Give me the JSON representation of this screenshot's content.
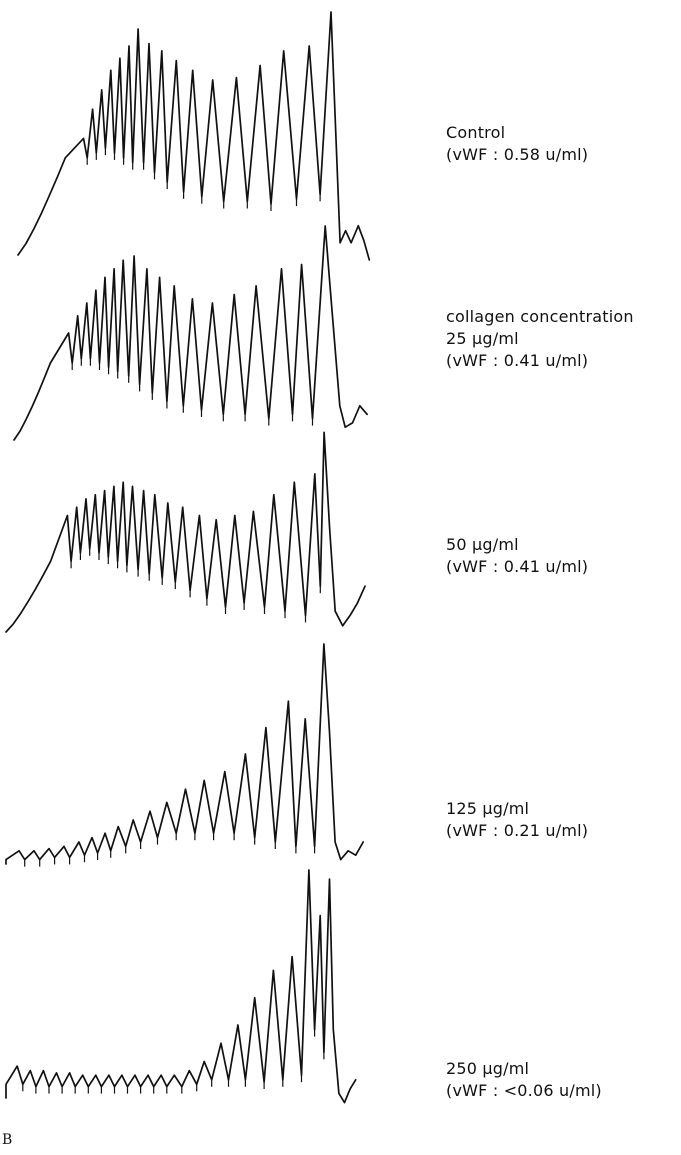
{
  "chart_data": {
    "type": "line",
    "description_free": true,
    "panel_letter": "B",
    "traces": [
      {
        "label_lines": [
          "Control",
          "(vWF : 0.58 u/ml)"
        ],
        "waveform": {
          "start": 0,
          "rise_end": 0.22,
          "osc_start": 0.13,
          "peaks": [
            [
              0.18,
              0.48
            ],
            [
              0.205,
              0.6
            ],
            [
              0.23,
              0.68
            ],
            [
              0.255,
              0.76
            ],
            [
              0.28,
              0.81
            ],
            [
              0.305,
              0.86
            ],
            [
              0.33,
              0.93
            ],
            [
              0.36,
              0.87
            ],
            [
              0.395,
              0.84
            ],
            [
              0.435,
              0.8
            ],
            [
              0.48,
              0.76
            ],
            [
              0.535,
              0.72
            ],
            [
              0.6,
              0.73
            ],
            [
              0.665,
              0.78
            ],
            [
              0.73,
              0.84
            ],
            [
              0.8,
              0.86
            ],
            [
              0.86,
              1.0
            ]
          ],
          "valleys": [
            [
              0.19,
              0.4
            ],
            [
              0.215,
              0.42
            ],
            [
              0.24,
              0.44
            ],
            [
              0.265,
              0.42
            ],
            [
              0.29,
              0.4
            ],
            [
              0.315,
              0.38
            ],
            [
              0.345,
              0.38
            ],
            [
              0.375,
              0.34
            ],
            [
              0.41,
              0.3
            ],
            [
              0.455,
              0.26
            ],
            [
              0.505,
              0.24
            ],
            [
              0.565,
              0.22
            ],
            [
              0.63,
              0.22
            ],
            [
              0.695,
              0.21
            ],
            [
              0.765,
              0.23
            ],
            [
              0.83,
              0.25
            ]
          ],
          "tail": [
            [
              0.885,
              0.05
            ],
            [
              0.9,
              0.1
            ],
            [
              0.915,
              0.05
            ],
            [
              0.935,
              0.12
            ],
            [
              0.95,
              0.06
            ],
            [
              0.965,
              -0.02
            ]
          ]
        }
      },
      {
        "label_lines": [
          "collagen concentration",
          "25 μg/ml",
          "(vWF : 0.41 u/ml)"
        ],
        "waveform": {
          "start": 0,
          "rise_end": 0.22,
          "osc_start": 0.1,
          "peaks": [
            [
              0.15,
              0.5
            ],
            [
              0.175,
              0.58
            ],
            [
              0.2,
              0.64
            ],
            [
              0.225,
              0.7
            ],
            [
              0.25,
              0.76
            ],
            [
              0.275,
              0.8
            ],
            [
              0.3,
              0.84
            ],
            [
              0.33,
              0.86
            ],
            [
              0.365,
              0.8
            ],
            [
              0.4,
              0.76
            ],
            [
              0.44,
              0.72
            ],
            [
              0.49,
              0.66
            ],
            [
              0.545,
              0.64
            ],
            [
              0.605,
              0.68
            ],
            [
              0.665,
              0.72
            ],
            [
              0.735,
              0.8
            ],
            [
              0.79,
              0.82
            ],
            [
              0.855,
              1.0
            ]
          ],
          "valleys": [
            [
              0.16,
              0.36
            ],
            [
              0.185,
              0.38
            ],
            [
              0.21,
              0.38
            ],
            [
              0.235,
              0.36
            ],
            [
              0.26,
              0.34
            ],
            [
              0.285,
              0.32
            ],
            [
              0.315,
              0.3
            ],
            [
              0.345,
              0.26
            ],
            [
              0.38,
              0.22
            ],
            [
              0.42,
              0.18
            ],
            [
              0.465,
              0.16
            ],
            [
              0.515,
              0.14
            ],
            [
              0.575,
              0.12
            ],
            [
              0.635,
              0.12
            ],
            [
              0.7,
              0.1
            ],
            [
              0.765,
              0.12
            ],
            [
              0.82,
              0.1
            ]
          ],
          "tail": [
            [
              0.87,
              0.68
            ],
            [
              0.895,
              0.16
            ],
            [
              0.91,
              0.06
            ],
            [
              0.93,
              0.08
            ],
            [
              0.95,
              0.16
            ],
            [
              0.97,
              0.12
            ]
          ]
        }
      },
      {
        "label_lines": [
          "50 μg/ml",
          "(vWF : 0.41 u/ml)"
        ],
        "waveform": {
          "start": 0,
          "rise_end": 0.2,
          "osc_start": 0.12,
          "peaks": [
            [
              0.165,
              0.56
            ],
            [
              0.19,
              0.6
            ],
            [
              0.215,
              0.64
            ],
            [
              0.24,
              0.66
            ],
            [
              0.265,
              0.68
            ],
            [
              0.29,
              0.7
            ],
            [
              0.315,
              0.72
            ],
            [
              0.34,
              0.7
            ],
            [
              0.37,
              0.68
            ],
            [
              0.4,
              0.66
            ],
            [
              0.435,
              0.62
            ],
            [
              0.475,
              0.6
            ],
            [
              0.52,
              0.56
            ],
            [
              0.565,
              0.54
            ],
            [
              0.615,
              0.56
            ],
            [
              0.665,
              0.58
            ],
            [
              0.72,
              0.66
            ],
            [
              0.775,
              0.72
            ],
            [
              0.83,
              0.76
            ],
            [
              0.855,
              0.96
            ]
          ],
          "valleys": [
            [
              0.175,
              0.34
            ],
            [
              0.2,
              0.38
            ],
            [
              0.225,
              0.4
            ],
            [
              0.25,
              0.38
            ],
            [
              0.275,
              0.36
            ],
            [
              0.3,
              0.34
            ],
            [
              0.325,
              0.32
            ],
            [
              0.355,
              0.3
            ],
            [
              0.385,
              0.28
            ],
            [
              0.42,
              0.26
            ],
            [
              0.455,
              0.24
            ],
            [
              0.495,
              0.2
            ],
            [
              0.54,
              0.16
            ],
            [
              0.59,
              0.12
            ],
            [
              0.64,
              0.14
            ],
            [
              0.695,
              0.12
            ],
            [
              0.75,
              0.1
            ],
            [
              0.805,
              0.08
            ],
            [
              0.845,
              0.22
            ]
          ],
          "tail": [
            [
              0.87,
              0.5
            ],
            [
              0.885,
              0.1
            ],
            [
              0.905,
              0.03
            ],
            [
              0.925,
              0.08
            ],
            [
              0.945,
              0.14
            ],
            [
              0.965,
              0.22
            ]
          ]
        }
      },
      {
        "label_lines": [
          "125 μg/ml",
          "(vWF : 0.21 u/ml)"
        ],
        "waveform": {
          "start": 0,
          "rise_end": 0.08,
          "osc_start": 0.0,
          "peaks": [
            [
              0.035,
              0.06
            ],
            [
              0.075,
              0.06
            ],
            [
              0.115,
              0.07
            ],
            [
              0.155,
              0.08
            ],
            [
              0.195,
              0.1
            ],
            [
              0.23,
              0.12
            ],
            [
              0.265,
              0.14
            ],
            [
              0.3,
              0.17
            ],
            [
              0.34,
              0.2
            ],
            [
              0.385,
              0.24
            ],
            [
              0.43,
              0.28
            ],
            [
              0.48,
              0.34
            ],
            [
              0.53,
              0.38
            ],
            [
              0.585,
              0.42
            ],
            [
              0.64,
              0.5
            ],
            [
              0.695,
              0.62
            ],
            [
              0.755,
              0.74
            ],
            [
              0.8,
              0.66
            ],
            [
              0.85,
              1.0
            ]
          ],
          "valleys": [
            [
              0.05,
              0.02
            ],
            [
              0.09,
              0.02
            ],
            [
              0.13,
              0.03
            ],
            [
              0.17,
              0.03
            ],
            [
              0.21,
              0.04
            ],
            [
              0.245,
              0.05
            ],
            [
              0.28,
              0.06
            ],
            [
              0.32,
              0.08
            ],
            [
              0.36,
              0.1
            ],
            [
              0.405,
              0.12
            ],
            [
              0.455,
              0.14
            ],
            [
              0.505,
              0.14
            ],
            [
              0.555,
              0.14
            ],
            [
              0.61,
              0.14
            ],
            [
              0.665,
              0.12
            ],
            [
              0.72,
              0.1
            ],
            [
              0.775,
              0.08
            ],
            [
              0.825,
              0.08
            ]
          ],
          "tail": [
            [
              0.865,
              0.6
            ],
            [
              0.88,
              0.1
            ],
            [
              0.895,
              0.02
            ],
            [
              0.915,
              0.06
            ],
            [
              0.935,
              0.04
            ],
            [
              0.955,
              0.1
            ]
          ]
        }
      },
      {
        "label_lines": [
          "250 μg/ml",
          "(vWF : <0.06 u/ml)"
        ],
        "waveform": {
          "start": 0,
          "rise_end": 0.04,
          "osc_start": 0.0,
          "peaks": [
            [
              0.03,
              0.14
            ],
            [
              0.065,
              0.12
            ],
            [
              0.1,
              0.12
            ],
            [
              0.135,
              0.11
            ],
            [
              0.17,
              0.11
            ],
            [
              0.205,
              0.1
            ],
            [
              0.24,
              0.1
            ],
            [
              0.275,
              0.1
            ],
            [
              0.31,
              0.1
            ],
            [
              0.345,
              0.1
            ],
            [
              0.38,
              0.1
            ],
            [
              0.415,
              0.1
            ],
            [
              0.45,
              0.1
            ],
            [
              0.49,
              0.12
            ],
            [
              0.53,
              0.16
            ],
            [
              0.575,
              0.24
            ],
            [
              0.62,
              0.32
            ],
            [
              0.665,
              0.44
            ],
            [
              0.715,
              0.56
            ],
            [
              0.765,
              0.62
            ],
            [
              0.81,
              1.0
            ],
            [
              0.84,
              0.8
            ],
            [
              0.865,
              0.96
            ]
          ],
          "valleys": [
            [
              0.045,
              0.06
            ],
            [
              0.08,
              0.05
            ],
            [
              0.115,
              0.05
            ],
            [
              0.15,
              0.05
            ],
            [
              0.185,
              0.05
            ],
            [
              0.22,
              0.05
            ],
            [
              0.255,
              0.05
            ],
            [
              0.29,
              0.05
            ],
            [
              0.325,
              0.05
            ],
            [
              0.36,
              0.05
            ],
            [
              0.395,
              0.05
            ],
            [
              0.43,
              0.05
            ],
            [
              0.47,
              0.05
            ],
            [
              0.51,
              0.06
            ],
            [
              0.55,
              0.08
            ],
            [
              0.595,
              0.08
            ],
            [
              0.64,
              0.08
            ],
            [
              0.69,
              0.07
            ],
            [
              0.74,
              0.08
            ],
            [
              0.79,
              0.1
            ],
            [
              0.825,
              0.3
            ],
            [
              0.85,
              0.2
            ]
          ],
          "tail": [
            [
              0.875,
              0.3
            ],
            [
              0.89,
              0.02
            ],
            [
              0.905,
              -0.02
            ],
            [
              0.92,
              0.04
            ],
            [
              0.935,
              0.08
            ]
          ]
        }
      }
    ]
  }
}
